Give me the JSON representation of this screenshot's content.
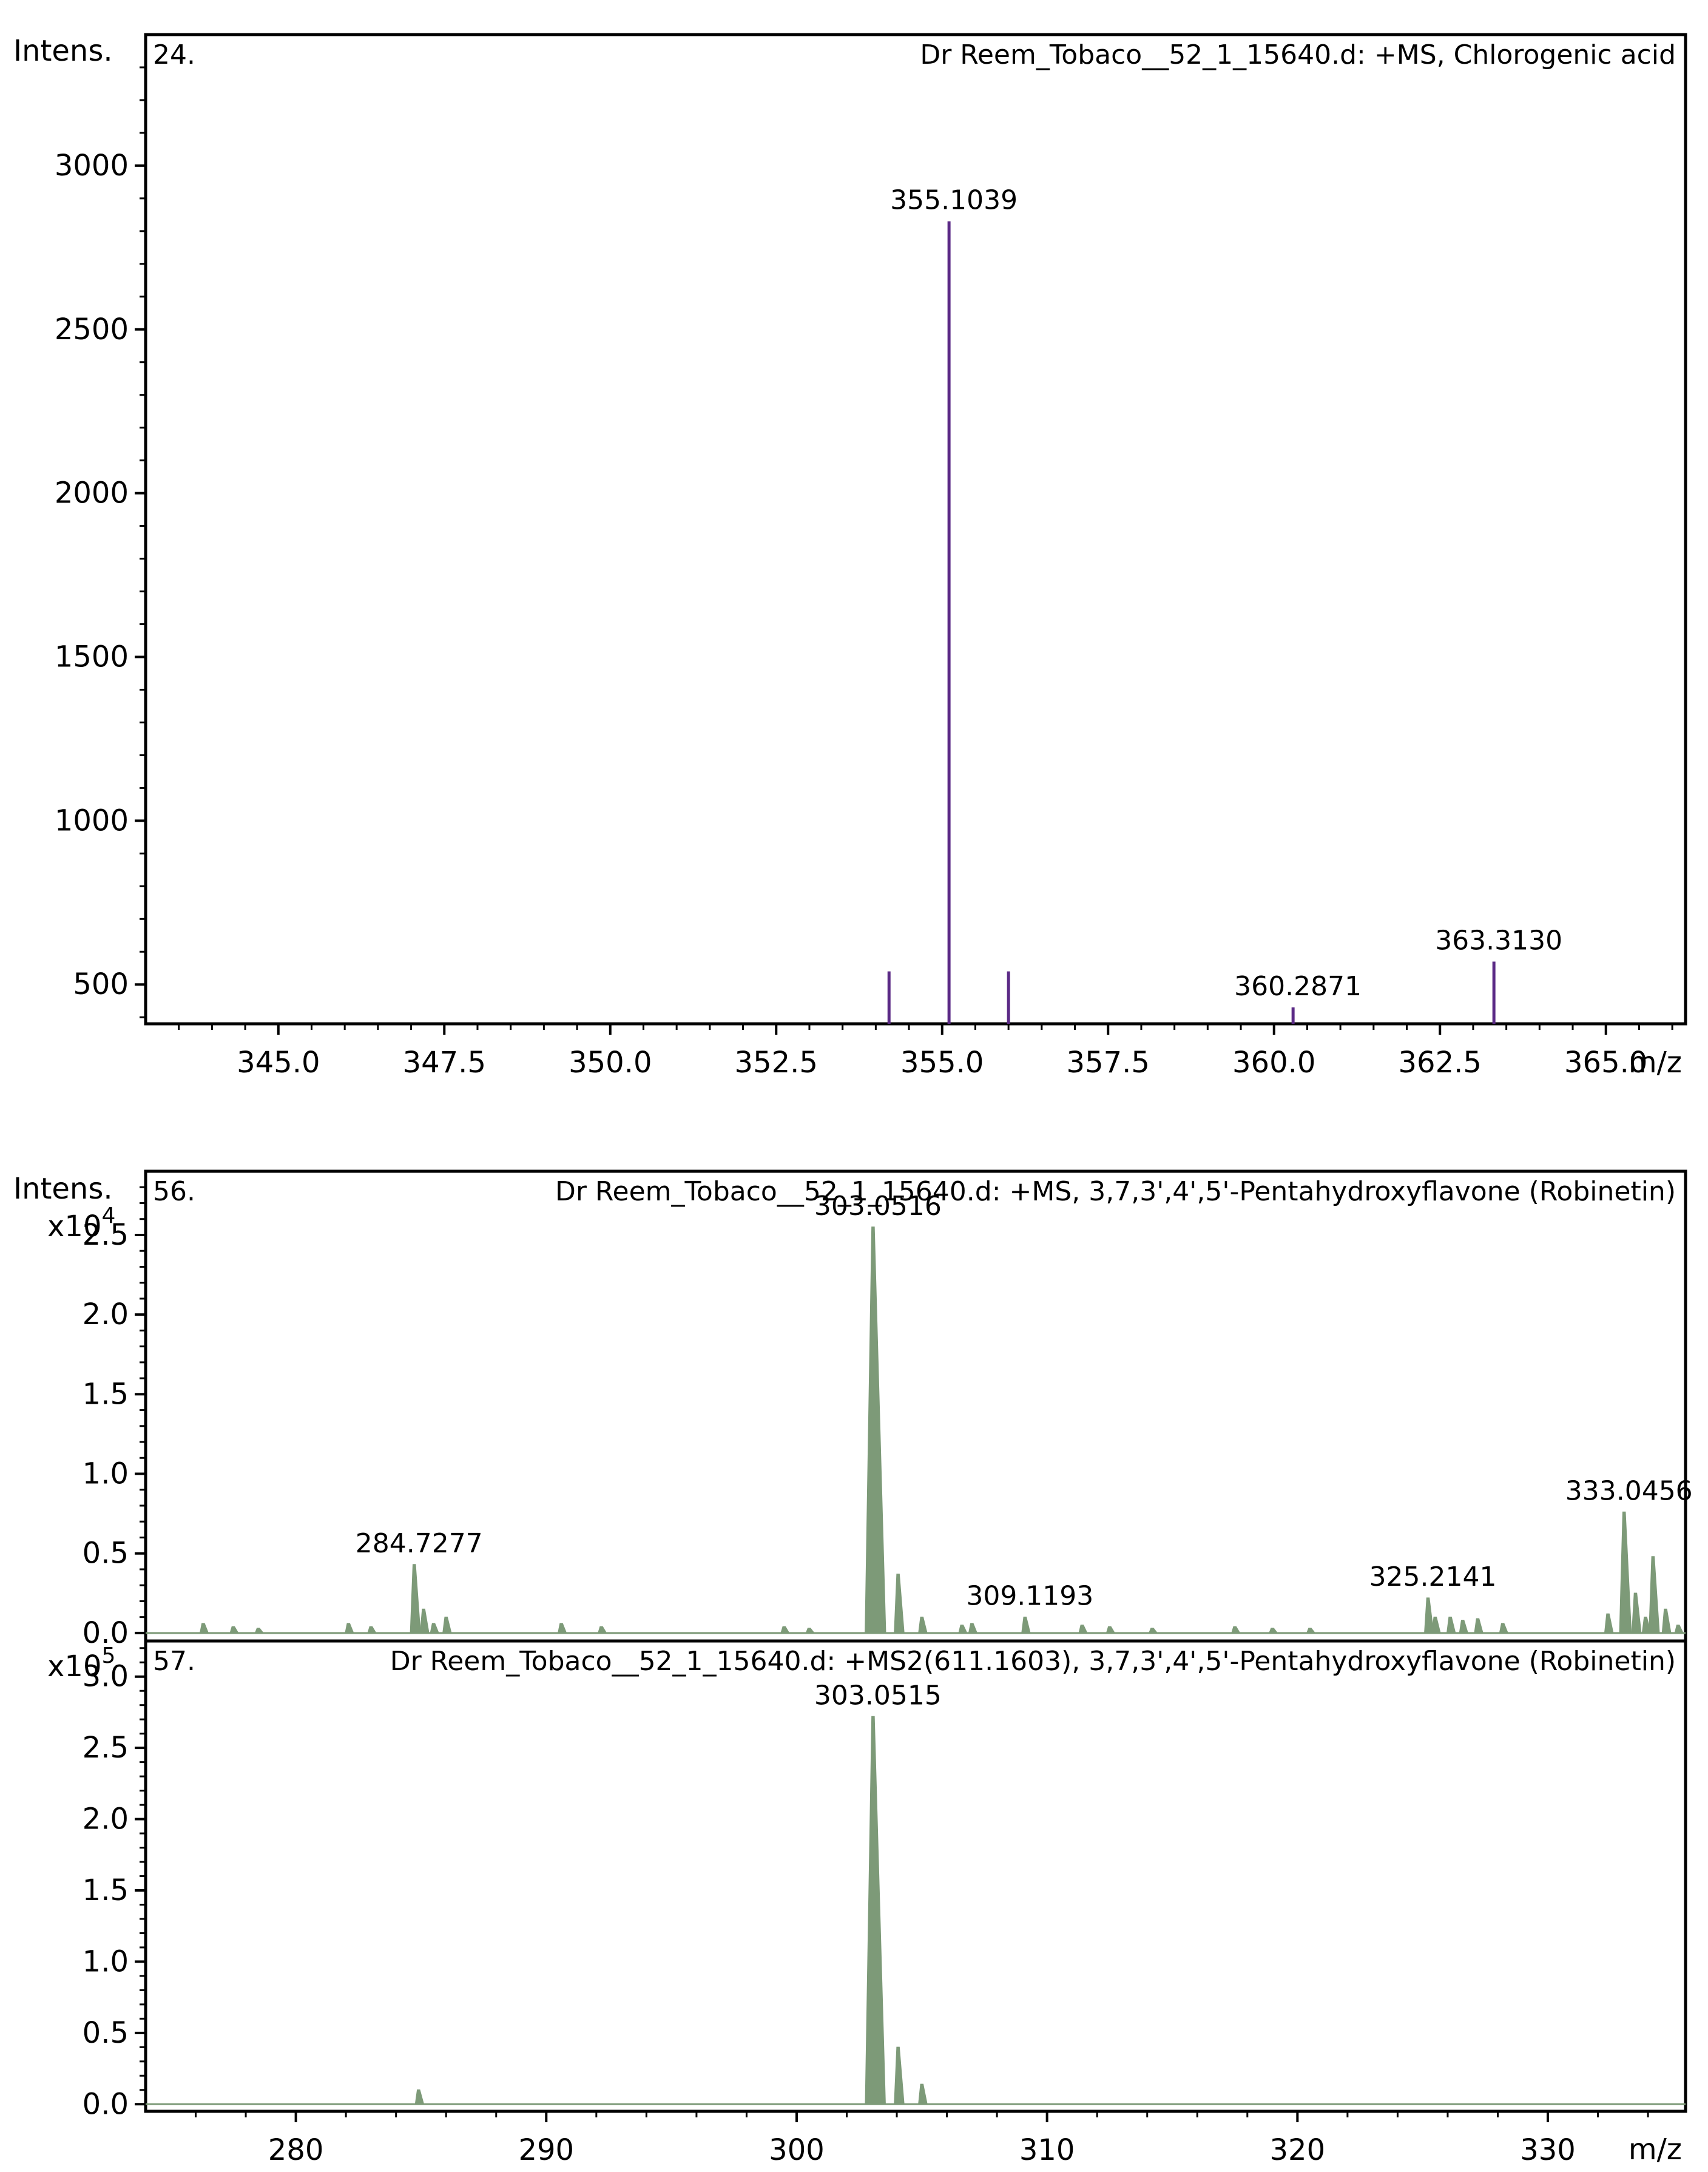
{
  "chart_data": [
    {
      "type": "bar",
      "panel_label": "24.",
      "title": "Dr Reem_Tobaco__52_1_15640.d: +MS, Chlorogenic acid",
      "ylabel": "Intens.",
      "xlabel": "m/z",
      "xlim": [
        343.0,
        366.2
      ],
      "ylim": [
        380,
        3400
      ],
      "x_ticks": [
        "345.0",
        "347.5",
        "350.0",
        "352.5",
        "355.0",
        "357.5",
        "360.0",
        "362.5",
        "365.0"
      ],
      "y_ticks": [
        "500",
        "1000",
        "1500",
        "2000",
        "2500",
        "3000"
      ],
      "color": "#5b2a86",
      "peaks": [
        {
          "x": 354.2,
          "y": 540
        },
        {
          "x": 355.1039,
          "y": 2830,
          "label": "355.1039"
        },
        {
          "x": 356.0,
          "y": 540
        },
        {
          "x": 360.2871,
          "y": 430,
          "label": "360.2871"
        },
        {
          "x": 363.313,
          "y": 570,
          "label": "363.3130"
        }
      ]
    },
    {
      "type": "area",
      "panel_label": "56.",
      "title": "Dr Reem_Tobaco__52_1_15640.d: +MS, 3,7,3',4',5'-Pentahydroxyflavone (Robinetin)",
      "ylabel": "Intens.",
      "scale_base": "x10",
      "scale_exp": "4",
      "xlim": [
        274,
        335.5
      ],
      "ylim": [
        -0.05,
        2.9
      ],
      "y_ticks": [
        "0.0",
        "0.5",
        "1.0",
        "1.5",
        "2.0",
        "2.5"
      ],
      "color": "#7d9a78",
      "peaks": [
        {
          "x": 276.3,
          "y": 0.06
        },
        {
          "x": 277.5,
          "y": 0.04
        },
        {
          "x": 278.5,
          "y": 0.03
        },
        {
          "x": 282.1,
          "y": 0.06
        },
        {
          "x": 283.0,
          "y": 0.04
        },
        {
          "x": 284.7277,
          "y": 0.43,
          "label": "284.7277"
        },
        {
          "x": 285.1,
          "y": 0.15
        },
        {
          "x": 285.5,
          "y": 0.06
        },
        {
          "x": 286.0,
          "y": 0.1
        },
        {
          "x": 290.6,
          "y": 0.06
        },
        {
          "x": 292.2,
          "y": 0.04
        },
        {
          "x": 299.5,
          "y": 0.04
        },
        {
          "x": 300.5,
          "y": 0.03
        },
        {
          "x": 303.0516,
          "y": 2.55,
          "label": "303.0516"
        },
        {
          "x": 304.05,
          "y": 0.37
        },
        {
          "x": 305.0,
          "y": 0.1
        },
        {
          "x": 306.6,
          "y": 0.05
        },
        {
          "x": 307.0,
          "y": 0.06
        },
        {
          "x": 309.1193,
          "y": 0.1,
          "label": "309.1193"
        },
        {
          "x": 311.4,
          "y": 0.05
        },
        {
          "x": 312.5,
          "y": 0.04
        },
        {
          "x": 314.2,
          "y": 0.03
        },
        {
          "x": 317.5,
          "y": 0.04
        },
        {
          "x": 319.0,
          "y": 0.03
        },
        {
          "x": 320.5,
          "y": 0.03
        },
        {
          "x": 325.2141,
          "y": 0.22,
          "label": "325.2141"
        },
        {
          "x": 325.5,
          "y": 0.1
        },
        {
          "x": 326.1,
          "y": 0.1
        },
        {
          "x": 326.6,
          "y": 0.08
        },
        {
          "x": 327.2,
          "y": 0.09
        },
        {
          "x": 328.2,
          "y": 0.06
        },
        {
          "x": 332.4,
          "y": 0.12
        },
        {
          "x": 333.0456,
          "y": 0.76,
          "label": "333.0456"
        },
        {
          "x": 333.5,
          "y": 0.25
        },
        {
          "x": 333.9,
          "y": 0.1
        },
        {
          "x": 334.2,
          "y": 0.48
        },
        {
          "x": 334.7,
          "y": 0.15
        },
        {
          "x": 335.2,
          "y": 0.05
        }
      ]
    },
    {
      "type": "area",
      "panel_label": "57.",
      "title": "Dr Reem_Tobaco__52_1_15640.d: +MS2(611.1603), 3,7,3',4',5'-Pentahydroxyflavone (Robinetin)",
      "scale_base": "x10",
      "scale_exp": "5",
      "xlabel": "m/z",
      "xlim": [
        274,
        335.5
      ],
      "ylim": [
        -0.05,
        3.25
      ],
      "x_ticks": [
        "280",
        "290",
        "300",
        "310",
        "320",
        "330"
      ],
      "y_ticks": [
        "0.0",
        "0.5",
        "1.0",
        "1.5",
        "2.0",
        "2.5",
        "3.0"
      ],
      "color": "#7d9a78",
      "peaks": [
        {
          "x": 284.9,
          "y": 0.1
        },
        {
          "x": 303.0515,
          "y": 2.72,
          "label": "303.0515"
        },
        {
          "x": 304.05,
          "y": 0.4
        },
        {
          "x": 305.0,
          "y": 0.14
        }
      ]
    }
  ]
}
